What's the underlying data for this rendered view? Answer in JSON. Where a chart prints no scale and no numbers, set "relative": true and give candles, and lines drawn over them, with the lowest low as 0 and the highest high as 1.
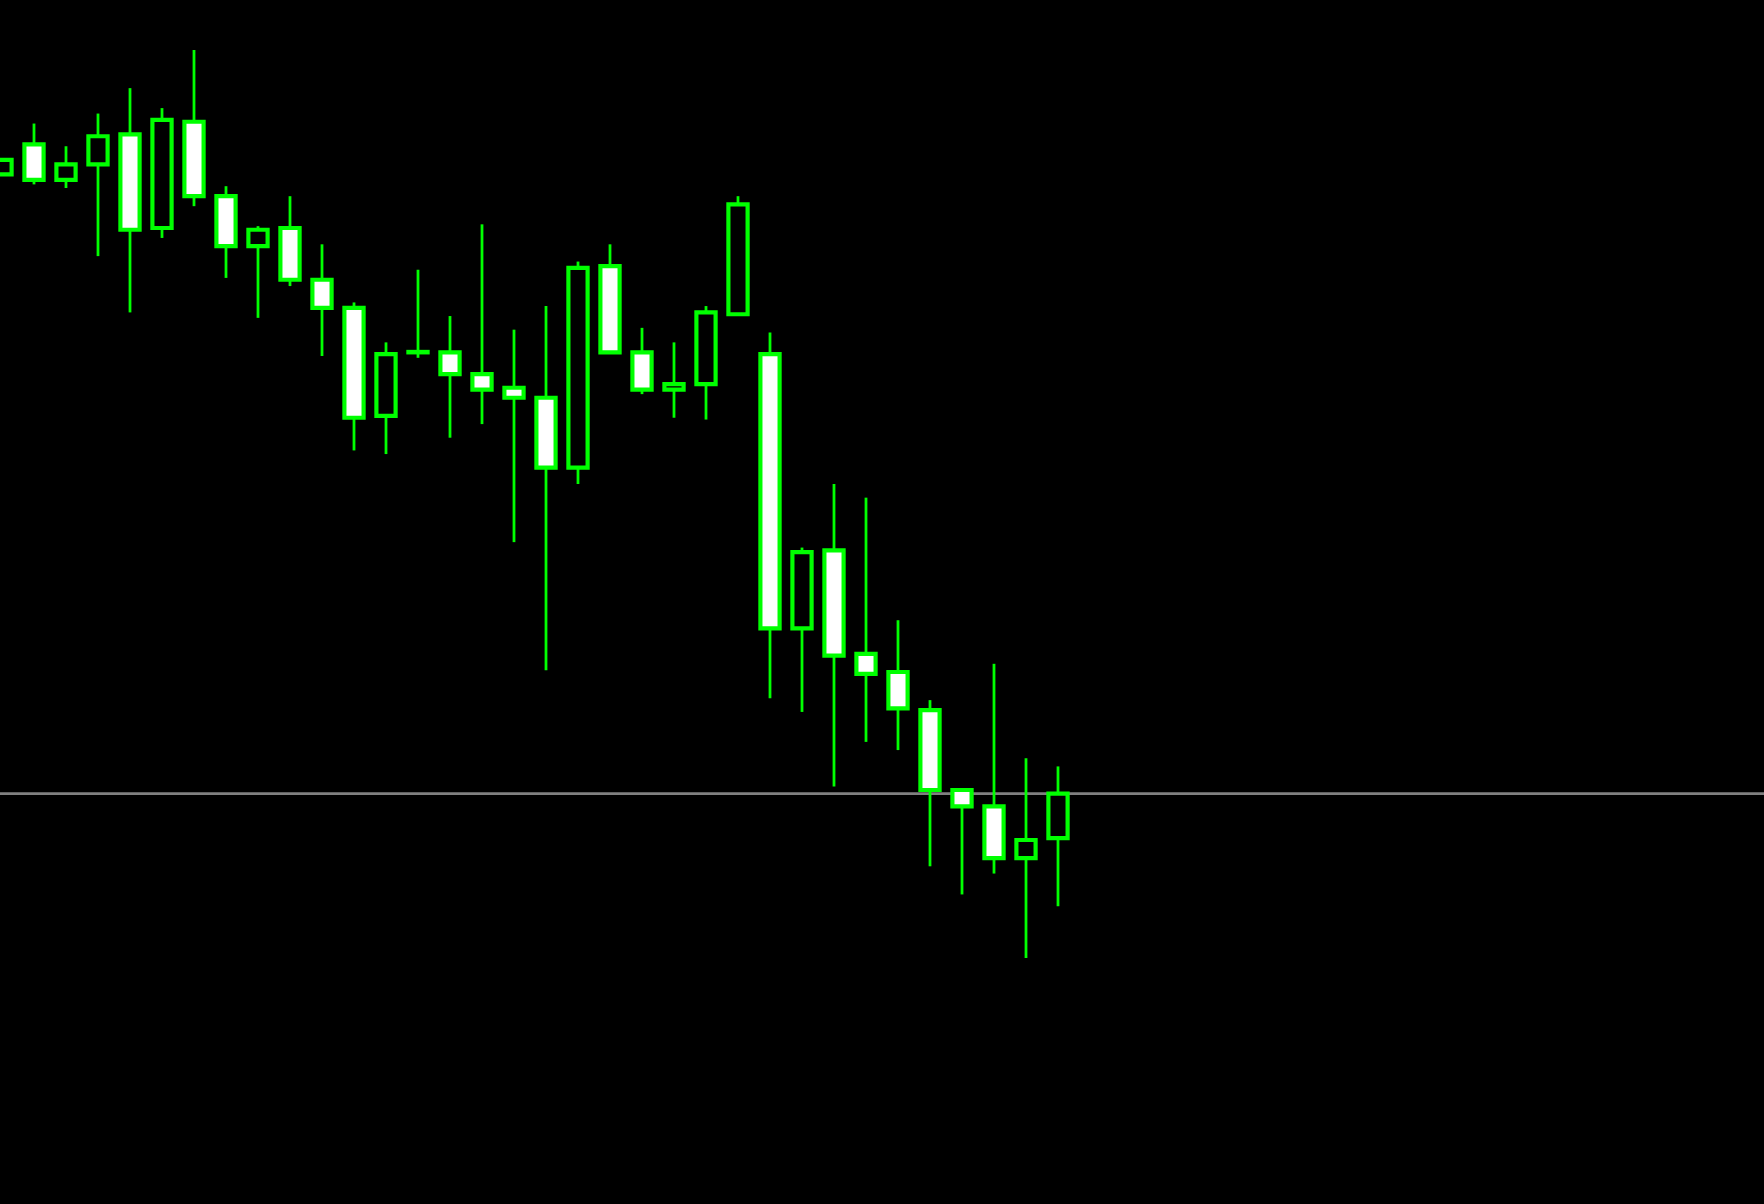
{
  "chart_data": {
    "type": "candlestick",
    "relative": true,
    "categories": [
      null,
      null,
      null,
      null,
      null,
      null,
      null,
      null,
      null,
      null,
      null,
      null,
      null,
      null,
      null,
      null,
      null,
      null,
      null,
      null,
      null,
      null,
      null,
      null,
      null,
      null,
      null,
      null,
      null,
      null,
      null,
      null,
      null,
      null
    ],
    "ohlc": [
      [
        0.863,
        0.879,
        0.863,
        0.879
      ],
      [
        0.896,
        0.919,
        0.852,
        0.857
      ],
      [
        0.857,
        0.894,
        0.848,
        0.874
      ],
      [
        0.874,
        0.93,
        0.773,
        0.905
      ],
      [
        0.907,
        0.958,
        0.711,
        0.802
      ],
      [
        0.804,
        0.936,
        0.793,
        0.923
      ],
      [
        0.921,
        1.0,
        0.828,
        0.839
      ],
      [
        0.839,
        0.85,
        0.749,
        0.784
      ],
      [
        0.784,
        0.806,
        0.705,
        0.802
      ],
      [
        0.804,
        0.839,
        0.74,
        0.747
      ],
      [
        0.747,
        0.786,
        0.663,
        0.716
      ],
      [
        0.716,
        0.722,
        0.559,
        0.595
      ],
      [
        0.597,
        0.678,
        0.555,
        0.665
      ],
      [
        0.667,
        0.758,
        0.661,
        0.667
      ],
      [
        0.667,
        0.707,
        0.573,
        0.643
      ],
      [
        0.643,
        0.808,
        0.588,
        0.626
      ],
      [
        0.628,
        0.692,
        0.458,
        0.617
      ],
      [
        0.617,
        0.718,
        0.317,
        0.54
      ],
      [
        0.54,
        0.767,
        0.522,
        0.76
      ],
      [
        0.762,
        0.786,
        0.667,
        0.667
      ],
      [
        0.667,
        0.694,
        0.621,
        0.626
      ],
      [
        0.626,
        0.678,
        0.595,
        0.632
      ],
      [
        0.632,
        0.718,
        0.593,
        0.711
      ],
      [
        0.709,
        0.839,
        0.709,
        0.83
      ],
      [
        0.665,
        0.689,
        0.286,
        0.363
      ],
      [
        0.363,
        0.452,
        0.271,
        0.447
      ],
      [
        0.449,
        0.522,
        0.189,
        0.333
      ],
      [
        0.335,
        0.507,
        0.238,
        0.313
      ],
      [
        0.315,
        0.372,
        0.229,
        0.275
      ],
      [
        0.273,
        0.284,
        0.101,
        0.185
      ],
      [
        0.185,
        0.185,
        0.07,
        0.167
      ],
      [
        0.167,
        0.324,
        0.093,
        0.11
      ],
      [
        0.11,
        0.22,
        0.0,
        0.13
      ],
      [
        0.132,
        0.211,
        0.057,
        0.181
      ]
    ],
    "ref_lines": [
      {
        "axis": "y",
        "value": 0.181,
        "color": "#808080"
      }
    ],
    "legend": false
  }
}
